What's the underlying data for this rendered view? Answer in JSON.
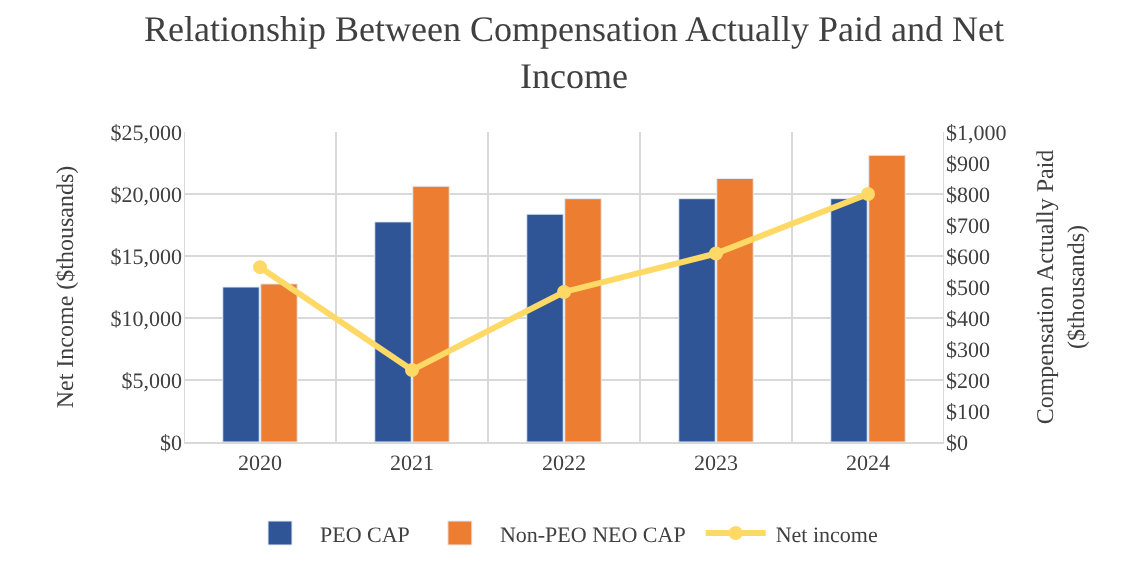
{
  "chart_data": {
    "type": "bar",
    "title": "Relationship Between Compensation Actually Paid and Net Income",
    "ylabel": "Net Income ($thousands)",
    "y2label": "Compensation Actually Paid ($thousands)",
    "categories": [
      "2020",
      "2021",
      "2022",
      "2023",
      "2024"
    ],
    "series": [
      {
        "name": "PEO CAP",
        "color": "#2f5597",
        "axis": "y2",
        "values": [
          500,
          710,
          735,
          785,
          785
        ]
      },
      {
        "name": "Non-PEO NEO CAP",
        "color": "#ed7d31",
        "axis": "y2",
        "values": [
          510,
          825,
          785,
          850,
          925
        ]
      },
      {
        "name": "Net income",
        "type": "line",
        "color": "#ffd966",
        "marker": "circle",
        "values": [
          14100,
          5800,
          12100,
          15200,
          20000
        ]
      }
    ],
    "ylim": [
      0,
      25000
    ],
    "yticks": [
      {
        "value": 0,
        "label": "$0"
      },
      {
        "value": 5000,
        "label": "$5,000"
      },
      {
        "value": 10000,
        "label": "$10,000"
      },
      {
        "value": 15000,
        "label": "$15,000"
      },
      {
        "value": 20000,
        "label": "$20,000"
      },
      {
        "value": 25000,
        "label": "$25,000"
      }
    ],
    "y2lim": [
      0,
      1000
    ],
    "y2ticks": [
      {
        "value": 0,
        "label": "$0"
      },
      {
        "value": 100,
        "label": "$100"
      },
      {
        "value": 200,
        "label": "$200"
      },
      {
        "value": 300,
        "label": "$300"
      },
      {
        "value": 400,
        "label": "$400"
      },
      {
        "value": 500,
        "label": "$500"
      },
      {
        "value": 600,
        "label": "$600"
      },
      {
        "value": 700,
        "label": "$700"
      },
      {
        "value": 800,
        "label": "$800"
      },
      {
        "value": 900,
        "label": "$900"
      },
      {
        "value": 1000,
        "label": "$1,000"
      }
    ],
    "grid": true,
    "legend": "bottom"
  }
}
